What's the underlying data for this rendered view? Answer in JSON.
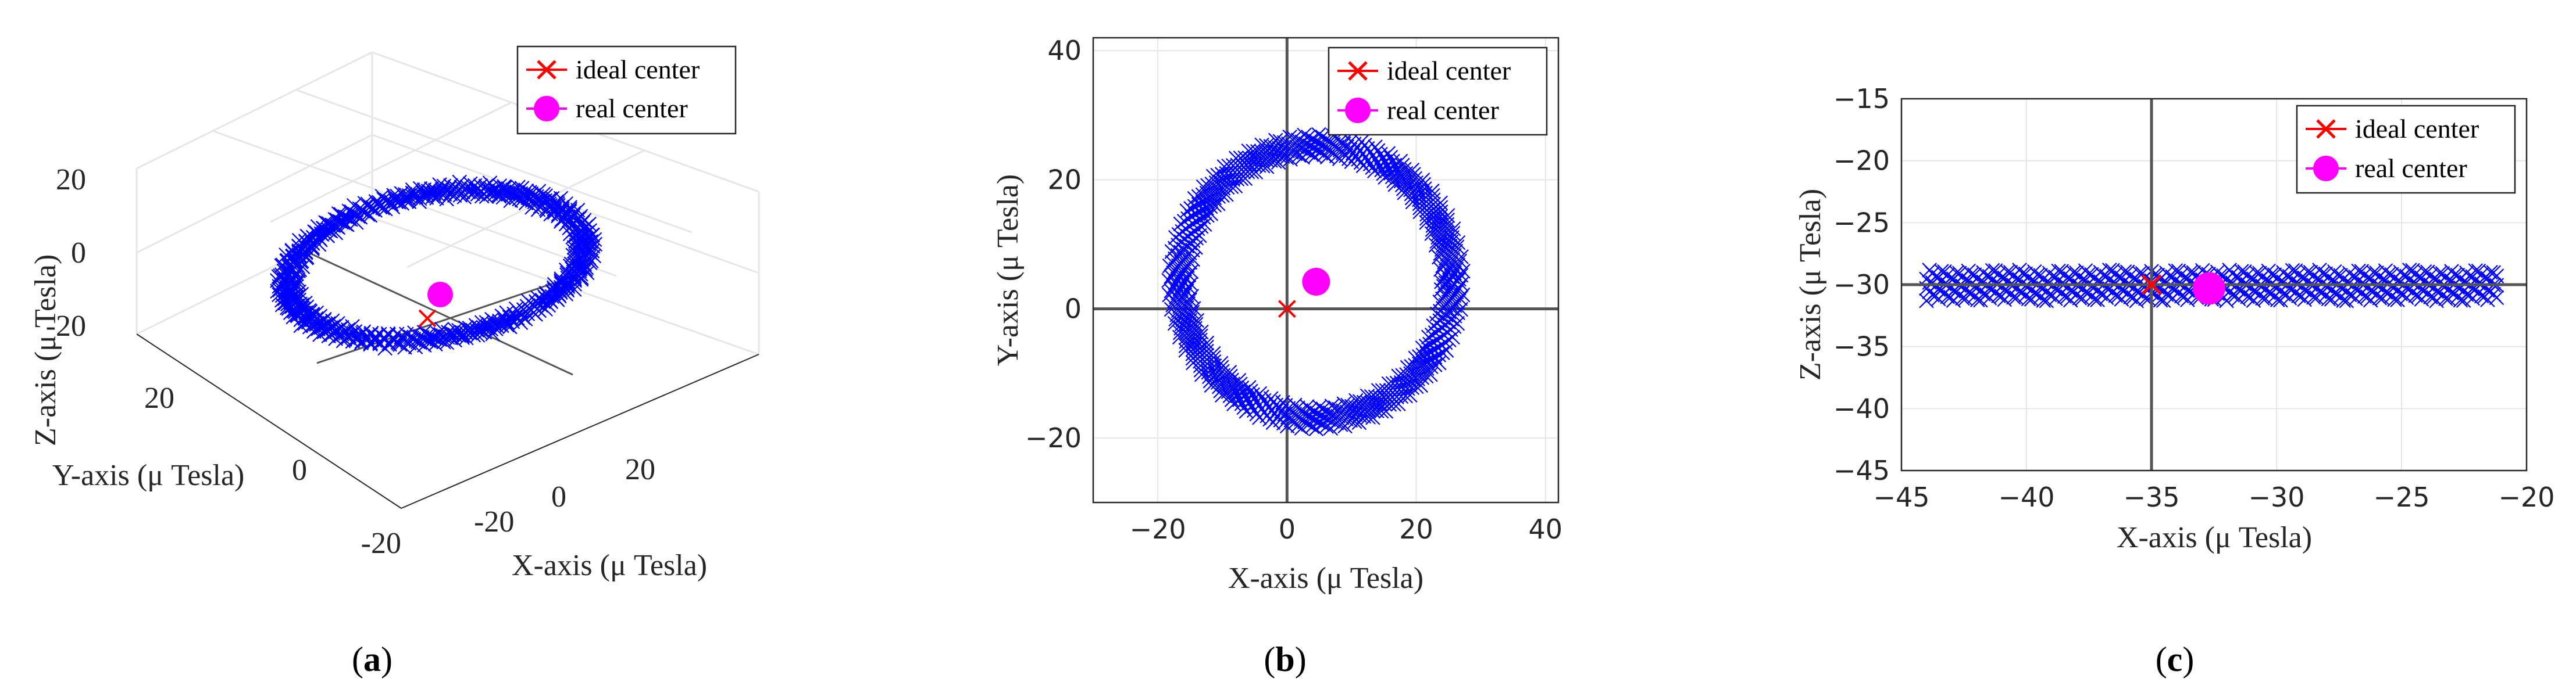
{
  "chart_data": [
    {
      "type": "scatter",
      "panel": "a",
      "view": "3d",
      "caption": "(a)",
      "xlabel": "X-axis (μ Tesla)",
      "ylabel": "Y-axis (μ Tesla)",
      "zlabel": "Z-axis (μ Tesla)",
      "x_ticks": [
        "-20",
        "0",
        "20"
      ],
      "y_ticks": [
        "-20",
        "0",
        "20"
      ],
      "z_ticks": [
        "-20",
        "0",
        "20"
      ],
      "xlim": [
        -28,
        32
      ],
      "ylim": [
        -22,
        32
      ],
      "zlim": [
        -28,
        24
      ],
      "grid": true,
      "legend_position": "top-right",
      "legend": [
        "ideal center",
        "real center"
      ],
      "series": [
        {
          "name": "ideal center",
          "marker": "x",
          "color": "#ff0000",
          "x": [
            0
          ],
          "y": [
            0
          ],
          "z": [
            0
          ]
        },
        {
          "name": "real center",
          "marker": "o",
          "color": "#ff00ff",
          "x": [
            4.5
          ],
          "y": [
            4.2
          ],
          "z": [
            0.5
          ]
        }
      ],
      "ring": {
        "color": "#0000ff",
        "marker": "x",
        "center_x": 4.5,
        "center_y": 4.2,
        "center_z": -30.2,
        "radius": 23,
        "thickness": 3.2,
        "note_z_shift": 30
      }
    },
    {
      "type": "scatter",
      "panel": "b",
      "caption": "(b)",
      "xlabel": "X-axis (μ Tesla)",
      "ylabel": "Y-axis (μ Tesla)",
      "x_ticks": [
        -20,
        0,
        20,
        40
      ],
      "y_ticks": [
        -20,
        0,
        20,
        40
      ],
      "xlim": [
        -30,
        42
      ],
      "ylim": [
        -30,
        42
      ],
      "grid": true,
      "legend_position": "top-right",
      "legend": [
        "ideal center",
        "real center"
      ],
      "series": [
        {
          "name": "ideal center",
          "marker": "x",
          "color": "#ff0000",
          "x": [
            0
          ],
          "y": [
            0
          ]
        },
        {
          "name": "real center",
          "marker": "o",
          "color": "#ff00ff",
          "x": [
            4.5
          ],
          "y": [
            4.2
          ]
        }
      ],
      "ring": {
        "color": "#0000ff",
        "marker": "x",
        "center_x": 4.5,
        "center_y": 4.2,
        "radius": 21.1,
        "thickness": 3.4
      }
    },
    {
      "type": "scatter",
      "panel": "c",
      "caption": "(c)",
      "xlabel": "X-axis (μ Tesla)",
      "ylabel": "Z-axis (μ Tesla)",
      "x_ticks": [
        -45,
        -40,
        -35,
        -30,
        -25,
        -20
      ],
      "y_ticks": [
        -15,
        -20,
        -25,
        -30,
        -35,
        -40,
        -45
      ],
      "xlim": [
        -45,
        -20
      ],
      "ylim": [
        -45,
        -15
      ],
      "grid": true,
      "legend_position": "top-right",
      "legend": [
        "ideal center",
        "real center"
      ],
      "series": [
        {
          "name": "ideal center",
          "marker": "x",
          "color": "#ff0000",
          "x": [
            -35
          ],
          "y": [
            -30
          ]
        },
        {
          "name": "real center",
          "marker": "o",
          "color": "#ff00ff",
          "x": [
            -32.7
          ],
          "y": [
            -30.3
          ]
        }
      ],
      "band": {
        "color": "#0000ff",
        "marker": "x",
        "x_range": [
          -44,
          -21.2
        ],
        "y_range": [
          -31.3,
          -28.8
        ]
      }
    }
  ]
}
